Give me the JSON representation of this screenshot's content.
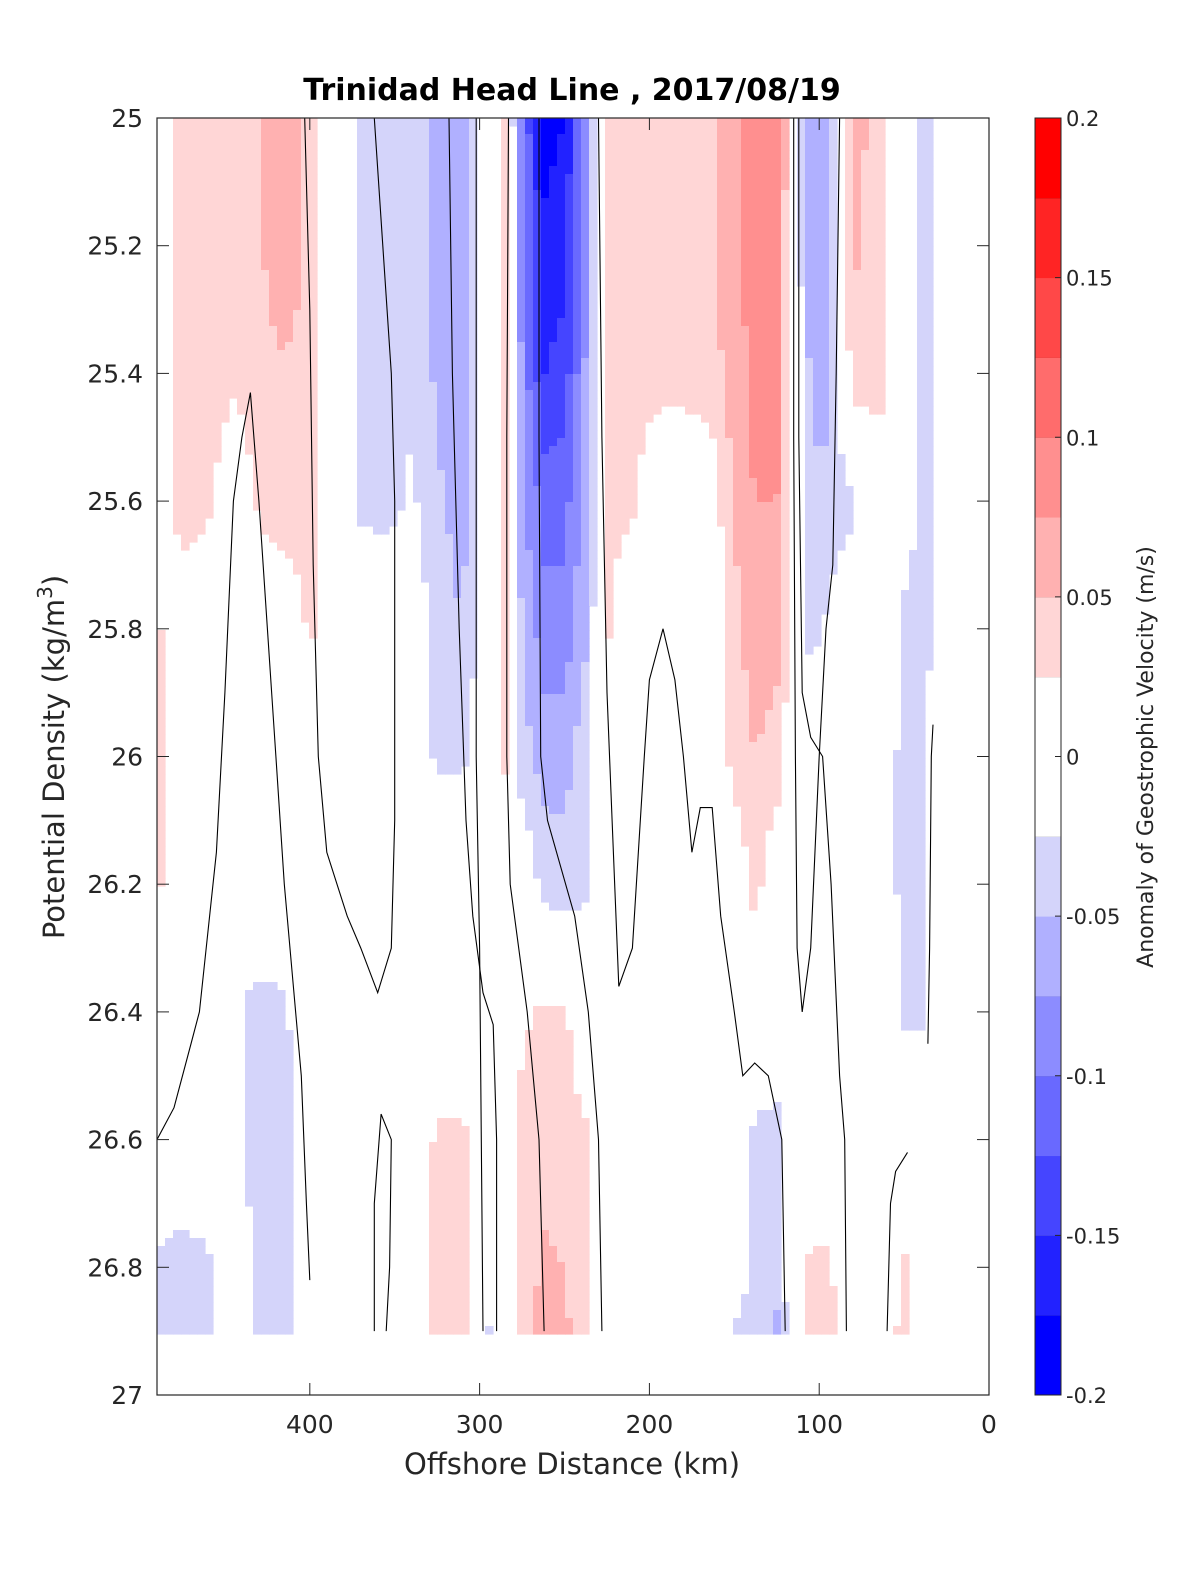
{
  "chart_data": {
    "type": "contourf",
    "title": "Trinidad Head Line , 2017/08/19",
    "xlabel": "Offshore Distance (km)",
    "ylabel_main": "Potential Density (kg/m",
    "ylabel_sup": "3",
    "ylabel_close": ")",
    "xlim": [
      490,
      0
    ],
    "ylim": [
      25,
      27
    ],
    "y_reversed": true,
    "x_ticks": [
      400,
      300,
      200,
      100,
      0
    ],
    "x_tick_labels": [
      "400",
      "300",
      "200",
      "100",
      "0"
    ],
    "y_ticks": [
      25,
      25.2,
      25.4,
      25.6,
      25.8,
      26,
      26.2,
      26.4,
      26.6,
      26.8,
      27
    ],
    "y_tick_labels": [
      "25",
      "25.2",
      "25.4",
      "25.6",
      "25.8",
      "26",
      "26.2",
      "26.4",
      "26.6",
      "26.8",
      "27"
    ],
    "data_ymax": 26.9,
    "colorbar": {
      "label": "Anomaly of Geostrophic Velocity (m/s)",
      "limits": [
        -0.2,
        0.2
      ],
      "levels": [
        -0.2,
        -0.175,
        -0.15,
        -0.125,
        -0.1,
        -0.075,
        -0.05,
        -0.025,
        0.025,
        0.05,
        0.075,
        0.1,
        0.125,
        0.15,
        0.175,
        0.2
      ],
      "tick_values": [
        0.2,
        0.15,
        0.1,
        0.05,
        0,
        -0.05,
        -0.1,
        -0.15,
        -0.2
      ],
      "tick_labels": [
        "0.2",
        "0.15",
        "0.1",
        "0.05",
        "0",
        "-0.05",
        "-0.1",
        "-0.15",
        "-0.2"
      ],
      "colors": [
        "#0000ff",
        "#2222ff",
        "#4545ff",
        "#6969ff",
        "#8c8cff",
        "#b0b0ff",
        "#d4d4fa",
        "#ffffff",
        "#ffd6d6",
        "#ffb1b1",
        "#ff8f8f",
        "#ff6c6c",
        "#ff4848",
        "#ff2424",
        "#ff0000"
      ]
    },
    "contour_levels": [
      -0.05,
      -0.025,
      0.025,
      0.05,
      0.075,
      0.1,
      0.125,
      0.15
    ],
    "velocity_field": {
      "comment": "velocity anomaly (m/s) at offshore distance x_km and potential density density",
      "density": [
        25.0,
        25.2,
        25.4,
        25.6,
        25.8,
        26.0,
        26.2,
        26.4,
        26.6,
        26.8,
        26.9
      ],
      "x_km": [
        490,
        475,
        460,
        445,
        430,
        415,
        400,
        385,
        370,
        355,
        340,
        325,
        310,
        295,
        285,
        275,
        262,
        250,
        238,
        225,
        210,
        195,
        180,
        165,
        150,
        138,
        125,
        115,
        105,
        95,
        80,
        65,
        50,
        40,
        30
      ],
      "values": [
        [
          0.0,
          0.04,
          0.04,
          0.04,
          0.045,
          0.075,
          0.04,
          0.0,
          -0.035,
          -0.035,
          -0.03,
          -0.055,
          -0.065,
          0.0,
          0.04,
          -0.1,
          -0.185,
          -0.175,
          -0.09,
          0.04,
          0.04,
          0.045,
          0.045,
          0.04,
          0.065,
          0.095,
          0.1,
          0.0,
          -0.06,
          -0.065,
          0.06,
          0.04,
          0.0,
          -0.03,
          -0.02
        ],
        [
          0.0,
          0.04,
          0.04,
          0.04,
          0.045,
          0.075,
          0.04,
          0.0,
          -0.035,
          -0.04,
          -0.03,
          -0.06,
          -0.07,
          0.0,
          0.04,
          -0.09,
          -0.17,
          -0.16,
          -0.08,
          0.04,
          0.04,
          0.04,
          0.04,
          0.04,
          0.065,
          0.09,
          0.095,
          0.0,
          -0.06,
          -0.07,
          0.055,
          0.04,
          0.0,
          -0.03,
          -0.02
        ],
        [
          0.0,
          0.04,
          0.04,
          0.03,
          0.04,
          0.045,
          0.04,
          0.0,
          -0.035,
          -0.04,
          -0.03,
          -0.055,
          -0.07,
          0.0,
          0.035,
          -0.08,
          -0.15,
          -0.14,
          -0.075,
          0.035,
          0.035,
          0.035,
          0.035,
          0.04,
          0.06,
          0.085,
          0.09,
          0.0,
          -0.055,
          -0.065,
          0.04,
          0.04,
          0.0,
          -0.03,
          -0.02
        ],
        [
          0.0,
          0.04,
          0.03,
          0.0,
          0.03,
          0.04,
          0.04,
          0.0,
          -0.03,
          -0.035,
          -0.02,
          -0.045,
          -0.06,
          0.0,
          0.035,
          -0.07,
          -0.11,
          -0.11,
          -0.065,
          0.03,
          0.03,
          0.0,
          0.0,
          0.0,
          0.055,
          0.075,
          0.075,
          0.0,
          -0.045,
          -0.04,
          -0.03,
          0.0,
          -0.01,
          -0.03,
          -0.02
        ],
        [
          0.03,
          0.0,
          0.0,
          0.0,
          0.0,
          0.0,
          0.03,
          0.0,
          0.0,
          0.0,
          0.0,
          -0.04,
          -0.05,
          0.0,
          0.03,
          -0.05,
          -0.09,
          -0.09,
          -0.055,
          0.03,
          0.0,
          0.0,
          0.0,
          0.0,
          0.04,
          0.065,
          0.06,
          0.0,
          -0.035,
          -0.02,
          0.0,
          0.0,
          -0.03,
          -0.035,
          -0.02
        ],
        [
          0.03,
          0.0,
          0.0,
          0.0,
          0.0,
          0.0,
          0.0,
          0.0,
          0.0,
          0.0,
          0.0,
          -0.03,
          -0.03,
          0.0,
          0.03,
          -0.04,
          -0.06,
          -0.06,
          -0.035,
          0.0,
          0.0,
          0.0,
          0.0,
          0.0,
          0.035,
          0.05,
          0.04,
          0.0,
          0.0,
          0.0,
          0.0,
          0.0,
          -0.035,
          -0.035,
          0.0
        ],
        [
          0.03,
          0.0,
          0.0,
          0.0,
          0.0,
          0.0,
          0.0,
          0.0,
          0.0,
          0.0,
          0.0,
          0.0,
          0.0,
          0.0,
          0.0,
          0.0,
          -0.035,
          -0.04,
          -0.03,
          0.0,
          0.0,
          0.0,
          0.0,
          0.0,
          0.0,
          0.035,
          0.0,
          0.0,
          0.0,
          0.0,
          0.0,
          0.0,
          -0.035,
          -0.035,
          0.0
        ],
        [
          0.0,
          0.0,
          0.0,
          -0.02,
          -0.035,
          -0.03,
          0.0,
          0.0,
          0.0,
          0.0,
          0.0,
          0.0,
          0.0,
          0.0,
          0.0,
          0.02,
          0.03,
          0.03,
          0.0,
          0.0,
          0.0,
          0.0,
          0.0,
          0.0,
          0.0,
          0.0,
          0.0,
          0.0,
          0.0,
          0.0,
          0.0,
          0.0,
          -0.03,
          -0.03,
          0.0
        ],
        [
          0.0,
          0.0,
          0.0,
          -0.02,
          -0.035,
          -0.035,
          0.0,
          0.0,
          0.0,
          0.0,
          0.0,
          0.03,
          0.03,
          0.0,
          0.0,
          0.035,
          0.04,
          0.035,
          0.03,
          0.0,
          0.0,
          0.0,
          0.0,
          0.0,
          0.0,
          -0.03,
          -0.035,
          0.0,
          0.0,
          0.0,
          0.0,
          0.0,
          0.0,
          0.0,
          0.0
        ],
        [
          -0.03,
          -0.035,
          -0.03,
          0.0,
          -0.035,
          -0.04,
          0.0,
          0.0,
          0.0,
          0.0,
          0.0,
          0.035,
          0.04,
          0.0,
          0.0,
          0.035,
          0.055,
          0.05,
          0.035,
          0.0,
          0.0,
          0.0,
          0.0,
          0.0,
          0.0,
          -0.035,
          -0.04,
          0.0,
          0.03,
          0.03,
          0.0,
          0.0,
          0.03,
          0.0,
          0.0
        ],
        [
          -0.035,
          -0.035,
          -0.03,
          0.0,
          -0.035,
          -0.04,
          0.0,
          0.0,
          0.0,
          0.0,
          0.0,
          0.035,
          0.04,
          -0.03,
          0.0,
          0.04,
          0.06,
          0.055,
          0.035,
          0.0,
          0.0,
          0.0,
          0.0,
          0.0,
          -0.03,
          -0.04,
          -0.055,
          0.0,
          0.035,
          0.035,
          0.0,
          0.0,
          0.035,
          0.0,
          0.0
        ]
      ]
    },
    "zero_contours": {
      "comment": "black zero-velocity contour lines, points as [offshore distance km, potential density]",
      "lines": [
        [
          [
            490,
            26.6
          ],
          [
            480,
            26.55
          ],
          [
            470,
            26.45
          ],
          [
            465,
            26.4
          ],
          [
            455,
            26.15
          ],
          [
            450,
            25.9
          ],
          [
            445,
            25.6
          ],
          [
            440,
            25.5
          ],
          [
            435,
            25.43
          ],
          [
            430,
            25.6
          ],
          [
            425,
            25.8
          ],
          [
            420,
            26.0
          ],
          [
            415,
            26.2
          ],
          [
            410,
            26.35
          ],
          [
            405,
            26.5
          ],
          [
            402,
            26.7
          ],
          [
            400,
            26.82
          ]
        ],
        [
          [
            403,
            25.0
          ],
          [
            400,
            25.3
          ],
          [
            398,
            25.7
          ],
          [
            395,
            26.0
          ],
          [
            390,
            26.15
          ],
          [
            378,
            26.25
          ],
          [
            370,
            26.3
          ],
          [
            360,
            26.37
          ],
          [
            352,
            26.3
          ],
          [
            350,
            26.1
          ],
          [
            350,
            25.6
          ],
          [
            352,
            25.4
          ],
          [
            357,
            25.2
          ],
          [
            362,
            25.0
          ]
        ],
        [
          [
            355,
            26.9
          ],
          [
            353,
            26.8
          ],
          [
            352,
            26.6
          ],
          [
            358,
            26.56
          ],
          [
            362,
            26.7
          ],
          [
            362,
            26.9
          ]
        ],
        [
          [
            318,
            25.0
          ],
          [
            316,
            25.4
          ],
          [
            312,
            25.8
          ],
          [
            308,
            26.1
          ],
          [
            304,
            26.25
          ],
          [
            298,
            26.37
          ],
          [
            292,
            26.42
          ],
          [
            290,
            26.6
          ],
          [
            290,
            26.9
          ]
        ],
        [
          [
            302,
            25.0
          ],
          [
            302,
            25.5
          ],
          [
            302,
            26.0
          ],
          [
            300,
            26.3
          ],
          [
            298,
            26.9
          ]
        ],
        [
          [
            283,
            25.0
          ],
          [
            284,
            25.5
          ],
          [
            284,
            26.0
          ],
          [
            282,
            26.2
          ],
          [
            277,
            26.3
          ],
          [
            272,
            26.4
          ],
          [
            265,
            26.6
          ],
          [
            262,
            26.9
          ]
        ],
        [
          [
            228,
            26.9
          ],
          [
            230,
            26.6
          ],
          [
            236,
            26.4
          ],
          [
            244,
            26.25
          ],
          [
            260,
            26.1
          ],
          [
            264,
            26.0
          ],
          [
            265,
            25.5
          ],
          [
            265,
            25.0
          ]
        ],
        [
          [
            230,
            25.0
          ],
          [
            228,
            25.5
          ],
          [
            225,
            25.9
          ],
          [
            222,
            26.1
          ],
          [
            218,
            26.36
          ],
          [
            210,
            26.3
          ],
          [
            203,
            26.0
          ],
          [
            200,
            25.88
          ],
          [
            192,
            25.8
          ],
          [
            185,
            25.88
          ],
          [
            180,
            26.0
          ],
          [
            175,
            26.15
          ],
          [
            170,
            26.08
          ],
          [
            163,
            26.08
          ],
          [
            158,
            26.25
          ],
          [
            150,
            26.4
          ],
          [
            145,
            26.5
          ],
          [
            138,
            26.48
          ],
          [
            130,
            26.5
          ],
          [
            122,
            26.6
          ],
          [
            120,
            26.9
          ]
        ],
        [
          [
            115,
            25.0
          ],
          [
            115,
            25.5
          ],
          [
            114,
            26.0
          ],
          [
            113,
            26.3
          ],
          [
            110,
            26.4
          ],
          [
            105,
            26.3
          ],
          [
            100,
            26.0
          ],
          [
            96,
            25.8
          ],
          [
            92,
            25.7
          ],
          [
            90,
            25.4
          ],
          [
            88,
            25.0
          ]
        ],
        [
          [
            84,
            26.9
          ],
          [
            85,
            26.6
          ],
          [
            88,
            26.5
          ],
          [
            93,
            26.2
          ],
          [
            98,
            26.0
          ],
          [
            105,
            25.97
          ],
          [
            110,
            25.9
          ],
          [
            112,
            25.5
          ],
          [
            112,
            25.0
          ]
        ],
        [
          [
            60,
            26.9
          ],
          [
            58,
            26.7
          ],
          [
            55,
            26.65
          ],
          [
            48,
            26.62
          ]
        ],
        [
          [
            36,
            26.45
          ],
          [
            35,
            26.3
          ],
          [
            34,
            26.0
          ],
          [
            33,
            25.95
          ]
        ]
      ]
    }
  }
}
